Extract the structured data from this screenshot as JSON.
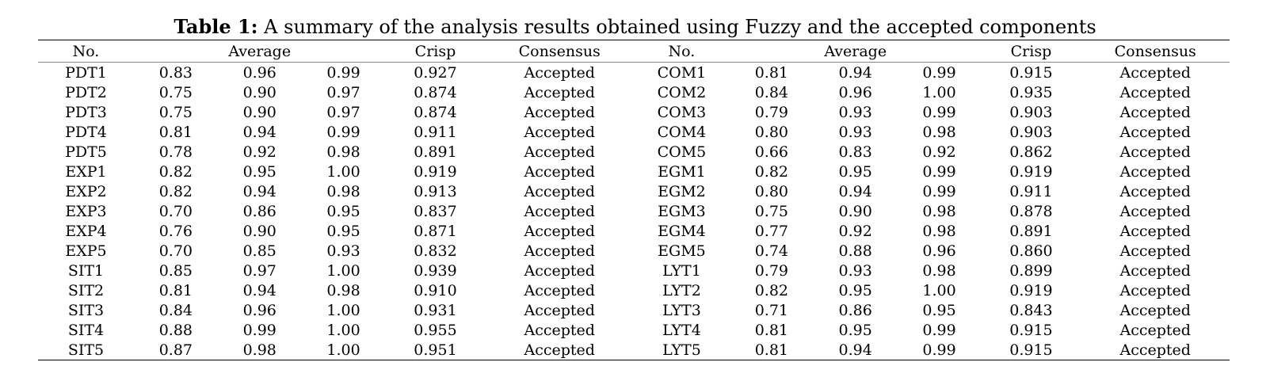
{
  "caption": {
    "label": "Table 1:",
    "text": "A summary of the analysis results obtained using Fuzzy and the accepted components"
  },
  "table": {
    "headers": {
      "no": "No.",
      "average": "Average",
      "crisp": "Crisp",
      "consensus": "Consensus"
    },
    "rows": [
      [
        [
          "PDT1",
          "0.83",
          "0.96",
          "0.99",
          "0.927",
          "Accepted"
        ],
        [
          "COM1",
          "0.81",
          "0.94",
          "0.99",
          "0.915",
          "Accepted"
        ]
      ],
      [
        [
          "PDT2",
          "0.75",
          "0.90",
          "0.97",
          "0.874",
          "Accepted"
        ],
        [
          "COM2",
          "0.84",
          "0.96",
          "1.00",
          "0.935",
          "Accepted"
        ]
      ],
      [
        [
          "PDT3",
          "0.75",
          "0.90",
          "0.97",
          "0.874",
          "Accepted"
        ],
        [
          "COM3",
          "0.79",
          "0.93",
          "0.99",
          "0.903",
          "Accepted"
        ]
      ],
      [
        [
          "PDT4",
          "0.81",
          "0.94",
          "0.99",
          "0.911",
          "Accepted"
        ],
        [
          "COM4",
          "0.80",
          "0.93",
          "0.98",
          "0.903",
          "Accepted"
        ]
      ],
      [
        [
          "PDT5",
          "0.78",
          "0.92",
          "0.98",
          "0.891",
          "Accepted"
        ],
        [
          "COM5",
          "0.66",
          "0.83",
          "0.92",
          "0.862",
          "Accepted"
        ]
      ],
      [
        [
          "EXP1",
          "0.82",
          "0.95",
          "1.00",
          "0.919",
          "Accepted"
        ],
        [
          "EGM1",
          "0.82",
          "0.95",
          "0.99",
          "0.919",
          "Accepted"
        ]
      ],
      [
        [
          "EXP2",
          "0.82",
          "0.94",
          "0.98",
          "0.913",
          "Accepted"
        ],
        [
          "EGM2",
          "0.80",
          "0.94",
          "0.99",
          "0.911",
          "Accepted"
        ]
      ],
      [
        [
          "EXP3",
          "0.70",
          "0.86",
          "0.95",
          "0.837",
          "Accepted"
        ],
        [
          "EGM3",
          "0.75",
          "0.90",
          "0.98",
          "0.878",
          "Accepted"
        ]
      ],
      [
        [
          "EXP4",
          "0.76",
          "0.90",
          "0.95",
          "0.871",
          "Accepted"
        ],
        [
          "EGM4",
          "0.77",
          "0.92",
          "0.98",
          "0.891",
          "Accepted"
        ]
      ],
      [
        [
          "EXP5",
          "0.70",
          "0.85",
          "0.93",
          "0.832",
          "Accepted"
        ],
        [
          "EGM5",
          "0.74",
          "0.88",
          "0.96",
          "0.860",
          "Accepted"
        ]
      ],
      [
        [
          "SIT1",
          "0.85",
          "0.97",
          "1.00",
          "0.939",
          "Accepted"
        ],
        [
          "LYT1",
          "0.79",
          "0.93",
          "0.98",
          "0.899",
          "Accepted"
        ]
      ],
      [
        [
          "SIT2",
          "0.81",
          "0.94",
          "0.98",
          "0.910",
          "Accepted"
        ],
        [
          "LYT2",
          "0.82",
          "0.95",
          "1.00",
          "0.919",
          "Accepted"
        ]
      ],
      [
        [
          "SIT3",
          "0.84",
          "0.96",
          "1.00",
          "0.931",
          "Accepted"
        ],
        [
          "LYT3",
          "0.71",
          "0.86",
          "0.95",
          "0.843",
          "Accepted"
        ]
      ],
      [
        [
          "SIT4",
          "0.88",
          "0.99",
          "1.00",
          "0.955",
          "Accepted"
        ],
        [
          "LYT4",
          "0.81",
          "0.95",
          "0.99",
          "0.915",
          "Accepted"
        ]
      ],
      [
        [
          "SIT5",
          "0.87",
          "0.98",
          "1.00",
          "0.951",
          "Accepted"
        ],
        [
          "LYT5",
          "0.81",
          "0.94",
          "0.99",
          "0.915",
          "Accepted"
        ]
      ]
    ]
  }
}
